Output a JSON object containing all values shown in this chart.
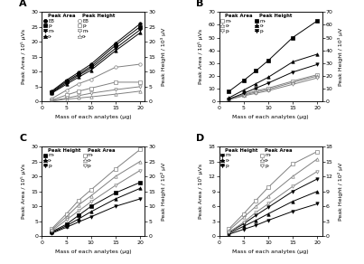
{
  "x": [
    2,
    5,
    7.5,
    10,
    15,
    20
  ],
  "panel_A": {
    "label": "A",
    "ylabel_left": "Peak Area / 10⁵ μVs",
    "ylabel_right": "Peak Height / 10³ μV",
    "ylim_left": [
      0,
      30
    ],
    "ylim_right": [
      0,
      30
    ],
    "yticks_left": [
      0,
      5,
      10,
      15,
      20,
      25,
      30
    ],
    "yticks_right": [
      0,
      5,
      10,
      15,
      20,
      25,
      30
    ],
    "legend_col1_title": "Peak Area",
    "legend_col2_title": "Peak Height",
    "legend_col1_labels": [
      "EB",
      "p-",
      "m-",
      "o-"
    ],
    "legend_col2_labels": [
      "EB",
      "p-",
      "m-",
      "o-"
    ],
    "series_left": {
      "data": [
        [
          3.5,
          7.2,
          9.8,
          12.5,
          19.5,
          26.0
        ],
        [
          3.2,
          6.8,
          9.2,
          11.8,
          18.8,
          25.0
        ],
        [
          3.0,
          6.3,
          8.8,
          11.2,
          17.8,
          24.0
        ],
        [
          2.8,
          5.8,
          8.2,
          10.5,
          17.0,
          23.0
        ]
      ],
      "markers": [
        "o",
        "s",
        "v",
        "^"
      ],
      "filled": [
        true,
        true,
        true,
        true
      ],
      "color": "black"
    },
    "series_right": {
      "data": [
        [
          1.0,
          3.8,
          6.0,
          7.5,
          11.5,
          12.5
        ],
        [
          0.5,
          2.2,
          3.5,
          4.5,
          6.5,
          6.5
        ],
        [
          0.3,
          1.2,
          2.0,
          2.8,
          4.0,
          5.0
        ],
        [
          0.2,
          0.8,
          1.2,
          1.6,
          2.5,
          3.5
        ]
      ],
      "markers": [
        "o",
        "s",
        "v",
        "^"
      ],
      "filled": [
        false,
        false,
        false,
        false
      ],
      "color": "gray"
    }
  },
  "panel_B": {
    "label": "B",
    "ylabel_left": "Peak Area / 10⁵ μVs",
    "ylabel_right": "Peak Height / 10³ μV",
    "ylim_left": [
      0,
      70
    ],
    "ylim_right": [
      0,
      70
    ],
    "yticks_left": [
      0,
      10,
      20,
      30,
      40,
      50,
      60,
      70
    ],
    "yticks_right": [
      0,
      10,
      20,
      30,
      40,
      50,
      60,
      70
    ],
    "legend_col1_title": "Peak Area",
    "legend_col2_title": "Peak Height",
    "legend_col1_labels": [
      "m-",
      "o-",
      "p-"
    ],
    "legend_col2_labels": [
      "m-",
      "o-",
      "p-"
    ],
    "series_left": {
      "data": [
        [
          2.0,
          5.5,
          8.5,
          10.5,
          16.0,
          21.0
        ],
        [
          1.8,
          5.0,
          7.5,
          9.5,
          15.0,
          20.0
        ],
        [
          1.5,
          4.5,
          6.5,
          8.5,
          13.5,
          18.5
        ]
      ],
      "markers": [
        "s",
        "^",
        "v"
      ],
      "filled": [
        false,
        false,
        false
      ],
      "color": "gray"
    },
    "series_right": {
      "data": [
        [
          8.0,
          16.5,
          24.0,
          32.0,
          50.0,
          63.0
        ],
        [
          3.0,
          9.0,
          14.0,
          19.0,
          31.0,
          37.0
        ],
        [
          2.0,
          6.5,
          10.5,
          14.5,
          23.0,
          29.0
        ]
      ],
      "markers": [
        "s",
        "^",
        "v"
      ],
      "filled": [
        true,
        true,
        true
      ],
      "color": "black"
    }
  },
  "panel_C": {
    "label": "C",
    "ylabel_left": "Peak Area / 10⁵ μVs",
    "ylabel_right": "Peak Height / 10² μV",
    "ylim_left": [
      0,
      30
    ],
    "ylim_right": [
      0,
      30
    ],
    "yticks_left": [
      0,
      5,
      10,
      15,
      20,
      25,
      30
    ],
    "yticks_right": [
      0,
      5,
      10,
      15,
      20,
      25,
      30
    ],
    "legend_col1_title": "Peak Height",
    "legend_col2_title": "Peak Area",
    "legend_col1_labels": [
      "m-",
      "o-",
      "p-"
    ],
    "legend_col2_labels": [
      "m-",
      "o-",
      "p-"
    ],
    "series_left": {
      "data": [
        [
          1.5,
          4.0,
          7.0,
          10.0,
          14.5,
          18.0
        ],
        [
          1.2,
          3.5,
          5.8,
          8.2,
          12.5,
          16.0
        ],
        [
          1.0,
          3.0,
          4.8,
          6.5,
          10.0,
          12.5
        ]
      ],
      "markers": [
        "s",
        "^",
        "v"
      ],
      "filled": [
        true,
        true,
        true
      ],
      "color": "black"
    },
    "series_right": {
      "data": [
        [
          2.5,
          7.5,
          12.0,
          15.5,
          22.5,
          29.0
        ],
        [
          2.2,
          6.5,
          10.5,
          13.5,
          20.0,
          25.0
        ],
        [
          1.8,
          5.5,
          8.5,
          11.5,
          17.0,
          22.0
        ]
      ],
      "markers": [
        "s",
        "^",
        "v"
      ],
      "filled": [
        false,
        false,
        false
      ],
      "color": "gray"
    }
  },
  "panel_D": {
    "label": "D",
    "ylabel_left": "Peak Area / 10⁵ μVs",
    "ylabel_right": "Peak Height / 10² μV",
    "ylim_left": [
      0,
      18
    ],
    "ylim_right": [
      0,
      18
    ],
    "yticks_left": [
      0,
      3,
      6,
      9,
      12,
      15,
      18
    ],
    "yticks_right": [
      0,
      3,
      6,
      9,
      12,
      15,
      18
    ],
    "legend_col1_title": "Peak Height",
    "legend_col2_title": "Peak Area",
    "legend_col1_labels": [
      "m-",
      "o-",
      "p-"
    ],
    "legend_col2_labels": [
      "m-",
      "o-",
      "p-"
    ],
    "series_left": {
      "data": [
        [
          0.8,
          2.5,
          4.2,
          5.8,
          9.0,
          11.5
        ],
        [
          0.6,
          2.0,
          3.2,
          4.5,
          7.0,
          9.0
        ],
        [
          0.4,
          1.4,
          2.2,
          3.2,
          5.0,
          6.5
        ]
      ],
      "markers": [
        "v",
        "^",
        "v"
      ],
      "filled": [
        true,
        true,
        true
      ],
      "color": "black"
    },
    "series_right": {
      "data": [
        [
          1.5,
          4.5,
          7.2,
          9.8,
          14.5,
          17.0
        ],
        [
          1.2,
          3.8,
          6.0,
          8.0,
          12.0,
          15.5
        ],
        [
          0.8,
          2.8,
          4.8,
          6.5,
          10.0,
          13.0
        ]
      ],
      "markers": [
        "s",
        "^",
        "v"
      ],
      "filled": [
        false,
        false,
        false
      ],
      "color": "gray"
    }
  },
  "xlabel": "Mass of each analytes (μg)",
  "xlim": [
    0,
    21
  ],
  "xticks": [
    0,
    5,
    10,
    15,
    20
  ]
}
